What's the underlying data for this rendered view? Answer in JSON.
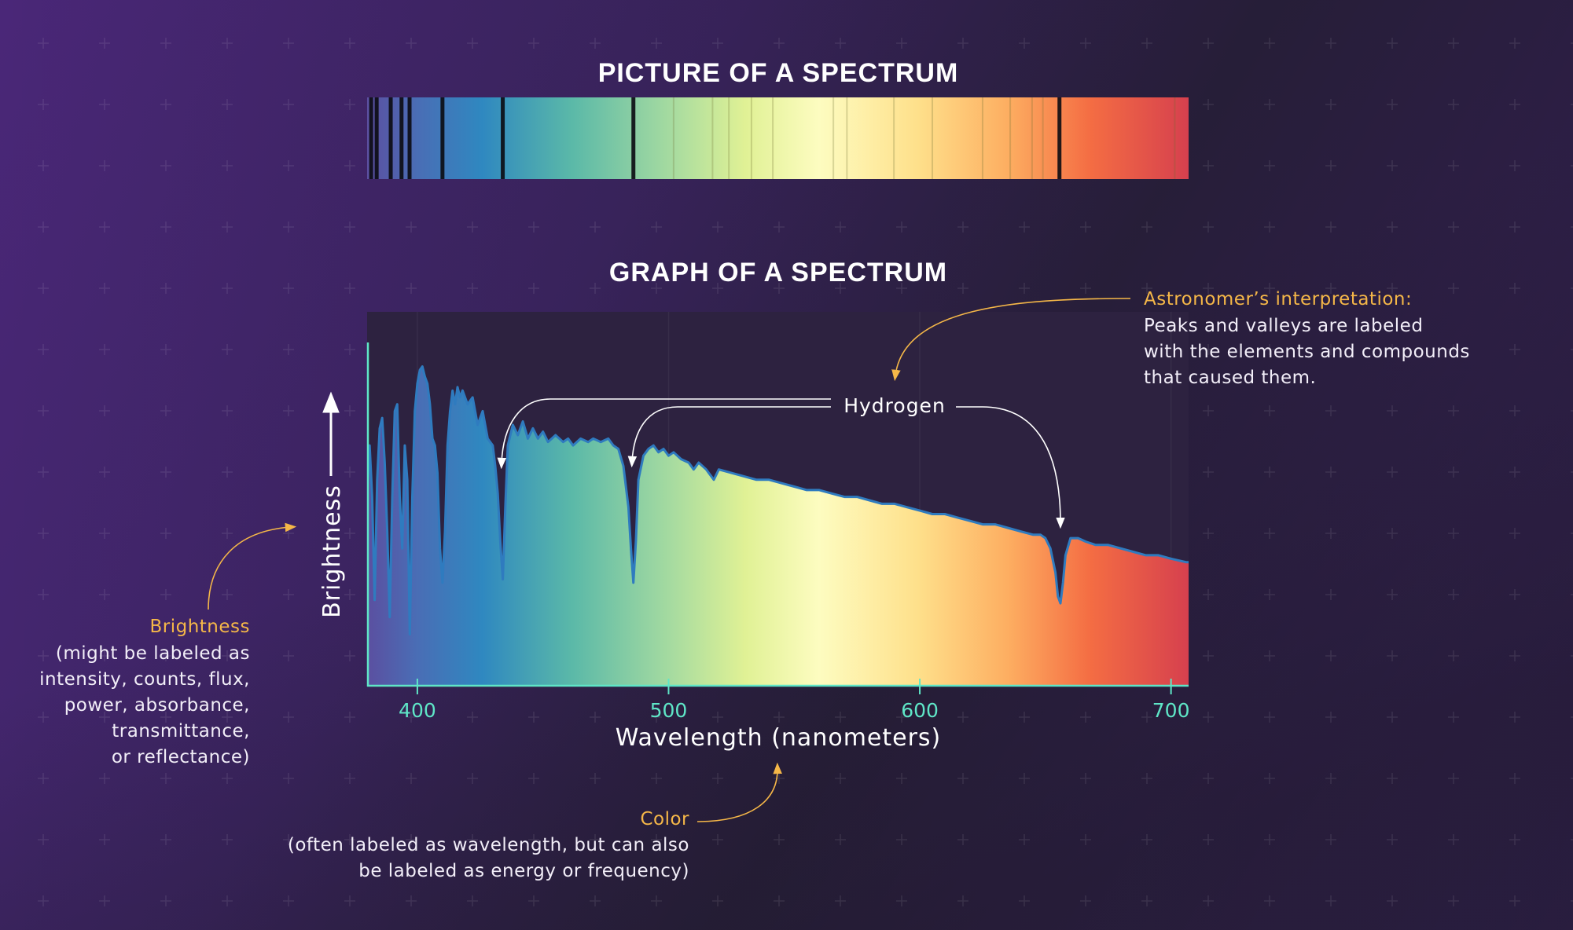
{
  "picture": {
    "title": "PICTURE OF A SPECTRUM"
  },
  "graph": {
    "title": "GRAPH OF A SPECTRUM"
  },
  "colors": {
    "accent_orange": "#f5b748",
    "axis_teal": "#5fe6c7",
    "curve_blue": "#2f7bbf",
    "bg_purple": "#46246e",
    "bg_dark": "#241c31",
    "chart_bg": "#2d2240"
  },
  "annotations": {
    "hydrogen": "Hydrogen",
    "interpretation": {
      "heading": "Astronomer’s interpretation:",
      "lines": [
        "Peaks and valleys are labeled",
        "with the elements and compounds",
        "that caused them."
      ]
    },
    "brightness": {
      "heading": "Brightness",
      "lines": [
        "(might be labeled as",
        "intensity, counts, flux,",
        "power, absorbance,",
        "transmittance,",
        "or reflectance)"
      ]
    },
    "color": {
      "heading": "Color",
      "lines": [
        "(often labeled as wavelength, but can also",
        "be labeled as energy or frequency)"
      ]
    }
  },
  "chart_data": {
    "type": "area",
    "xlabel": "Wavelength (nanometers)",
    "ylabel": "Brightness",
    "xlim": [
      380,
      707
    ],
    "ylim": [
      0,
      1
    ],
    "xticks": [
      400,
      500,
      600,
      700
    ],
    "grid": false,
    "fill": "wavelength color gradient",
    "hydrogen_lines_nm": [
      434,
      486,
      656
    ],
    "spectrum_strip_lines_nm": {
      "strong": [
        381.6,
        383.8,
        389.4,
        393.7,
        396.9,
        410,
        434,
        486,
        655.6
      ],
      "faint": [
        502,
        517.5,
        524,
        533,
        541.5,
        565.6,
        571,
        589.7,
        605,
        625,
        636,
        644.7,
        649,
        701.5
      ]
    },
    "x": [
      380,
      381,
      382,
      383,
      384,
      385,
      386,
      387,
      388,
      389,
      390,
      391,
      392,
      393,
      394,
      395,
      396,
      397,
      398,
      399,
      400,
      401,
      402,
      403,
      404,
      405,
      406,
      407,
      408,
      409,
      410,
      411,
      412,
      413,
      414,
      415,
      416,
      417,
      418,
      420,
      422,
      424,
      426,
      428,
      430,
      431,
      432,
      433,
      434,
      435,
      436,
      438,
      440,
      442,
      444,
      446,
      448,
      450,
      452,
      455,
      458,
      460,
      462,
      465,
      468,
      470,
      473,
      476,
      478,
      480,
      482,
      484,
      485,
      486,
      487,
      488,
      490,
      492,
      494,
      496,
      498,
      500,
      502,
      505,
      508,
      510,
      512,
      515,
      518,
      520,
      525,
      530,
      535,
      540,
      545,
      550,
      555,
      560,
      565,
      570,
      575,
      580,
      585,
      590,
      595,
      600,
      605,
      610,
      615,
      620,
      625,
      630,
      635,
      640,
      645,
      648,
      650,
      652,
      654,
      655,
      656,
      657,
      658,
      660,
      663,
      666,
      670,
      675,
      680,
      685,
      690,
      695,
      700,
      706
    ],
    "y": [
      0.55,
      0.7,
      0.55,
      0.25,
      0.6,
      0.75,
      0.78,
      0.65,
      0.45,
      0.2,
      0.55,
      0.8,
      0.82,
      0.55,
      0.4,
      0.7,
      0.6,
      0.15,
      0.55,
      0.8,
      0.88,
      0.92,
      0.93,
      0.9,
      0.88,
      0.82,
      0.72,
      0.7,
      0.62,
      0.4,
      0.3,
      0.45,
      0.7,
      0.8,
      0.86,
      0.82,
      0.87,
      0.84,
      0.86,
      0.82,
      0.84,
      0.76,
      0.8,
      0.72,
      0.7,
      0.64,
      0.56,
      0.42,
      0.31,
      0.52,
      0.7,
      0.76,
      0.73,
      0.77,
      0.72,
      0.75,
      0.72,
      0.74,
      0.71,
      0.73,
      0.71,
      0.72,
      0.7,
      0.72,
      0.71,
      0.72,
      0.71,
      0.72,
      0.7,
      0.69,
      0.64,
      0.52,
      0.4,
      0.3,
      0.42,
      0.6,
      0.67,
      0.69,
      0.7,
      0.68,
      0.69,
      0.67,
      0.68,
      0.66,
      0.65,
      0.63,
      0.65,
      0.63,
      0.6,
      0.63,
      0.62,
      0.61,
      0.6,
      0.6,
      0.59,
      0.58,
      0.57,
      0.57,
      0.56,
      0.55,
      0.55,
      0.54,
      0.53,
      0.53,
      0.52,
      0.51,
      0.5,
      0.5,
      0.49,
      0.48,
      0.47,
      0.47,
      0.46,
      0.45,
      0.44,
      0.44,
      0.43,
      0.4,
      0.33,
      0.26,
      0.24,
      0.3,
      0.38,
      0.43,
      0.43,
      0.42,
      0.41,
      0.41,
      0.4,
      0.39,
      0.38,
      0.38,
      0.37,
      0.36
    ]
  }
}
